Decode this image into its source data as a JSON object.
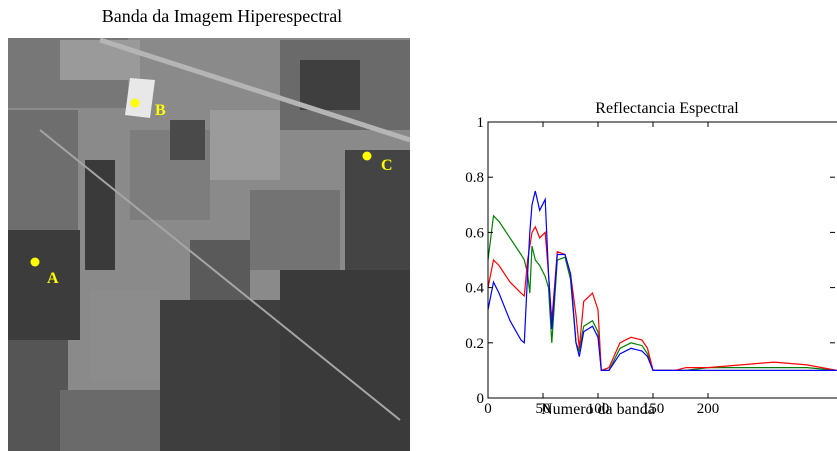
{
  "image": {
    "title": "Banda da Imagem Hiperespectral",
    "points": [
      {
        "label": "A"
      },
      {
        "label": "B"
      },
      {
        "label": "C"
      }
    ],
    "marker_color": "#ffff00"
  },
  "chart_data": {
    "type": "line",
    "title": "Reflectancia Espectral",
    "xlabel": "Numero da banda",
    "x": [
      0,
      5,
      10,
      20,
      30,
      33,
      36,
      38,
      40,
      43,
      47,
      52,
      55,
      58,
      63,
      70,
      75,
      80,
      83,
      87,
      95,
      100,
      103,
      110,
      120,
      130,
      140,
      145,
      150,
      160,
      170,
      180,
      200,
      230,
      260,
      290,
      317
    ],
    "series": [
      {
        "name": "A",
        "color": "#008000",
        "values": [
          0.5,
          0.66,
          0.64,
          0.58,
          0.52,
          0.5,
          0.45,
          0.38,
          0.55,
          0.5,
          0.48,
          0.44,
          0.4,
          0.2,
          0.5,
          0.51,
          0.43,
          0.2,
          0.17,
          0.26,
          0.28,
          0.24,
          0.1,
          0.1,
          0.18,
          0.2,
          0.19,
          0.16,
          0.1,
          0.1,
          0.1,
          0.1,
          0.11,
          0.11,
          0.11,
          0.11,
          0.1
        ]
      },
      {
        "name": "B",
        "color": "#ff0000",
        "values": [
          0.4,
          0.5,
          0.48,
          0.42,
          0.38,
          0.37,
          0.5,
          0.55,
          0.6,
          0.62,
          0.58,
          0.6,
          0.45,
          0.28,
          0.53,
          0.52,
          0.45,
          0.3,
          0.18,
          0.35,
          0.38,
          0.32,
          0.1,
          0.11,
          0.2,
          0.22,
          0.21,
          0.18,
          0.1,
          0.1,
          0.1,
          0.11,
          0.11,
          0.12,
          0.13,
          0.12,
          0.1
        ]
      },
      {
        "name": "C",
        "color": "#0000ff",
        "values": [
          0.32,
          0.42,
          0.38,
          0.28,
          0.21,
          0.2,
          0.45,
          0.6,
          0.7,
          0.75,
          0.68,
          0.72,
          0.45,
          0.25,
          0.52,
          0.52,
          0.45,
          0.2,
          0.15,
          0.24,
          0.26,
          0.22,
          0.1,
          0.1,
          0.16,
          0.18,
          0.17,
          0.15,
          0.1,
          0.1,
          0.1,
          0.1,
          0.1,
          0.1,
          0.1,
          0.1,
          0.1
        ]
      }
    ],
    "xlim": [
      0,
      317
    ],
    "ylim": [
      0,
      1
    ],
    "xticks": [
      0,
      50,
      100,
      150,
      200
    ],
    "yticks": [
      0,
      0.2,
      0.4,
      0.6,
      0.8,
      1
    ]
  }
}
